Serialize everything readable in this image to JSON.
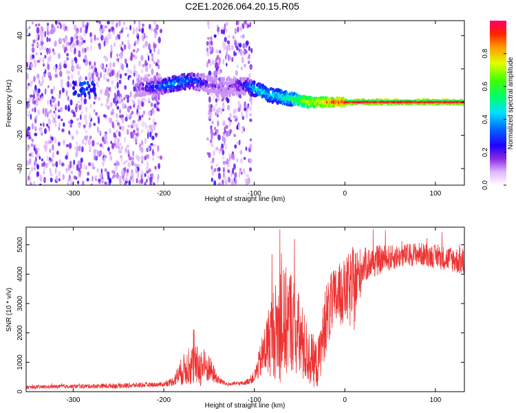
{
  "title": "C2E1.2026.064.20.15.R05",
  "chart_data": [
    {
      "type": "heatmap",
      "name": "spectrogram",
      "xlabel": "Height of straight line (km)",
      "ylabel": "Frequency (Hz)",
      "xlim": [
        -352,
        132
      ],
      "ylim": [
        -50,
        49
      ],
      "xticks": [
        -300,
        -200,
        -100,
        0,
        100
      ],
      "xtick_labels": [
        "-300",
        "-200",
        "-100",
        "0",
        "100"
      ],
      "yticks": [
        -40,
        -20,
        0,
        20,
        40
      ],
      "ytick_labels": [
        "-40",
        "-20",
        "0",
        "20",
        "40"
      ],
      "noise_regions": [
        {
          "x": [
            -352,
            -203
          ],
          "level": 0.08
        },
        {
          "x": [
            -152,
            -103
          ],
          "level": 0.07
        }
      ],
      "signal_trace": {
        "x": [
          -230,
          -210,
          -200,
          -190,
          -180,
          -170,
          -160,
          -150,
          -140,
          -130,
          -120,
          -110,
          -100,
          -90,
          -80,
          -70,
          -60,
          -50,
          -40,
          -30,
          -20,
          -10,
          0,
          10,
          50,
          100,
          132
        ],
        "y": [
          9,
          9,
          10,
          11,
          12,
          13,
          12,
          11,
          9,
          9,
          10,
          10,
          8,
          6,
          4,
          3,
          2,
          1,
          0,
          0,
          0,
          0,
          0,
          0,
          0,
          0,
          0
        ],
        "amplitude": [
          0.15,
          0.3,
          0.35,
          0.4,
          0.4,
          0.35,
          0.3,
          0.2,
          0.15,
          0.15,
          0.2,
          0.3,
          0.45,
          0.45,
          0.45,
          0.5,
          0.55,
          0.65,
          0.75,
          0.8,
          0.85,
          0.9,
          0.92,
          0.95,
          0.95,
          0.95,
          0.95
        ]
      },
      "early_feature": {
        "x": [
          -300,
          -275
        ],
        "y": 8
      }
    },
    {
      "type": "colorbar",
      "label": "Normalized spectral amplitude",
      "range": [
        0,
        1
      ],
      "ticks": [
        0.0,
        0.2,
        0.4,
        0.6,
        0.8
      ],
      "tick_labels": [
        "0.0",
        "0.2",
        "0.4",
        "0.6",
        "0.8"
      ]
    },
    {
      "type": "line",
      "name": "snr",
      "xlabel": "Height of straight line (km)",
      "ylabel": "SNR (10 * v/v)",
      "xlim": [
        -352,
        132
      ],
      "ylim": [
        0,
        5600
      ],
      "xticks": [
        -300,
        -200,
        -100,
        0,
        100
      ],
      "xtick_labels": [
        "-300",
        "-200",
        "-100",
        "0",
        "100"
      ],
      "yticks": [
        0,
        1000,
        2000,
        3000,
        4000,
        5000
      ],
      "ytick_labels": [
        "0",
        "1000",
        "2000",
        "3000",
        "4000",
        "5000"
      ],
      "series": [
        {
          "name": "SNR",
          "color": "#ee3333",
          "x": [
            -352,
            -300,
            -250,
            -200,
            -190,
            -180,
            -170,
            -160,
            -150,
            -140,
            -130,
            -110,
            -100,
            -90,
            -80,
            -70,
            -60,
            -50,
            -40,
            -30,
            -20,
            -10,
            0,
            10,
            20,
            40,
            60,
            80,
            100,
            120,
            132
          ],
          "y": [
            150,
            180,
            200,
            250,
            350,
            700,
            900,
            850,
            800,
            400,
            250,
            300,
            500,
            1300,
            2000,
            2200,
            2500,
            1800,
            1200,
            900,
            2600,
            3200,
            3400,
            3500,
            4300,
            4500,
            4600,
            4700,
            4600,
            4500,
            4400
          ],
          "noise_amp": [
            60,
            70,
            90,
            80,
            150,
            500,
            700,
            700,
            500,
            150,
            60,
            80,
            200,
            800,
            1500,
            2000,
            1800,
            1500,
            1000,
            800,
            1200,
            1100,
            1100,
            1500,
            600,
            500,
            400,
            400,
            400,
            450,
            500
          ]
        }
      ]
    }
  ]
}
